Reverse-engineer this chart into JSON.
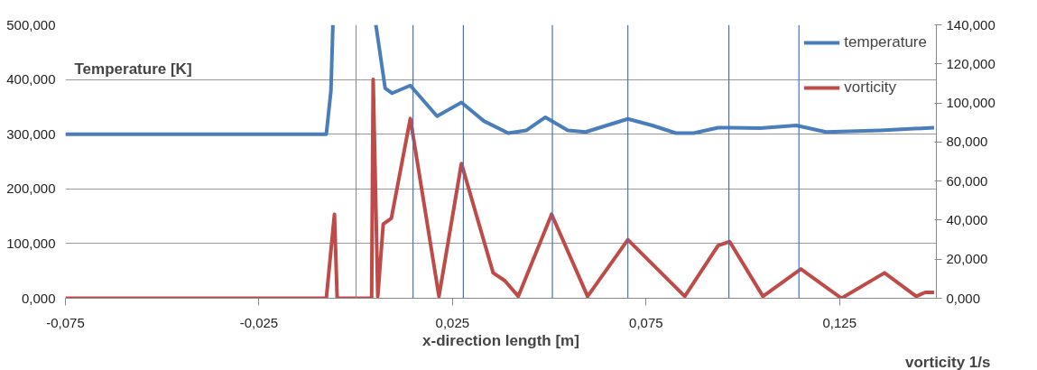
{
  "chart_data": {
    "type": "line",
    "xlabel": "x-direction length [m]",
    "ylabel": "Temperature [K]",
    "y2label": "vorticity 1/s",
    "xlim": [
      -0.075,
      0.15
    ],
    "xticks": [
      {
        "value": -0.075,
        "label": "-0,075"
      },
      {
        "value": -0.025,
        "label": "-0,025"
      },
      {
        "value": 0.025,
        "label": "0,025"
      },
      {
        "value": 0.075,
        "label": "0,075"
      },
      {
        "value": 0.125,
        "label": "0,125"
      }
    ],
    "ylim": [
      0,
      500
    ],
    "yticks": [
      {
        "value": 0,
        "label": "0,000"
      },
      {
        "value": 100,
        "label": "100,000"
      },
      {
        "value": 200,
        "label": "200,000"
      },
      {
        "value": 300,
        "label": "300,000"
      },
      {
        "value": 400,
        "label": "400,000"
      },
      {
        "value": 500,
        "label": "500,000"
      }
    ],
    "y2lim": [
      0,
      140
    ],
    "y2ticks": [
      {
        "value": 0,
        "label": "0,000"
      },
      {
        "value": 20,
        "label": "20,000"
      },
      {
        "value": 40,
        "label": "40,000"
      },
      {
        "value": 60,
        "label": "60,000"
      },
      {
        "value": 80,
        "label": "80,000"
      },
      {
        "value": 100,
        "label": "100,000"
      },
      {
        "value": 120,
        "label": "120,000"
      },
      {
        "value": 140,
        "label": "140,000"
      }
    ],
    "grid": "y",
    "legend": "top right",
    "marker": "none",
    "line_style": "solid",
    "series": [
      {
        "name": "temperature",
        "color": "#4a7ebb",
        "x": [
          -0.075,
          -0.0076,
          -0.0064,
          -0.0059,
          -0.0058,
          0.0052,
          0.0076,
          0.0094,
          0.0141,
          0.021,
          0.0273,
          0.0331,
          0.0394,
          0.0441,
          0.049,
          0.0548,
          0.0594,
          0.0703,
          0.0766,
          0.0827,
          0.0873,
          0.0936,
          0.0966,
          0.1045,
          0.1138,
          0.1215,
          0.1355,
          0.1494
        ],
        "values": [
          300,
          300,
          380,
          500,
          null,
          500,
          384,
          375,
          389,
          333,
          358,
          324,
          302,
          307,
          331,
          307,
          304,
          328,
          316,
          302,
          302,
          312,
          312,
          311,
          316,
          304,
          307,
          312
        ]
      },
      {
        "name": "vorticity",
        "color": "#be4b48",
        "axis": "y2",
        "x": [
          -0.075,
          -0.0076,
          -0.0055,
          -0.0048,
          0.0041,
          0.0045,
          0.0057,
          0.0071,
          0.0092,
          0.0141,
          0.0215,
          0.0273,
          0.0355,
          0.0385,
          0.042,
          0.0506,
          0.0599,
          0.0703,
          0.085,
          0.0936,
          0.0966,
          0.1052,
          0.115,
          0.1255,
          0.1366,
          0.1448,
          0.1471,
          0.1494
        ],
        "values": [
          0,
          0,
          43,
          0,
          0,
          112,
          1,
          38,
          41,
          92,
          1,
          69,
          13,
          9,
          1,
          43,
          1,
          30,
          1,
          27,
          29,
          1,
          15,
          0,
          13,
          1,
          3,
          3
        ]
      }
    ],
    "ref_lines": [
      {
        "axis": "x",
        "value": 0.0148,
        "color": "#4472c4"
      },
      {
        "axis": "x",
        "value": 0.0278,
        "color": "#4472c4"
      },
      {
        "axis": "x",
        "value": 0.0508,
        "color": "#4472c4"
      },
      {
        "axis": "x",
        "value": 0.0703,
        "color": "#4472c4"
      },
      {
        "axis": "x",
        "value": 0.0964,
        "color": "#4472c4"
      },
      {
        "axis": "x",
        "value": 0.1145,
        "color": "#4472c4"
      }
    ]
  }
}
